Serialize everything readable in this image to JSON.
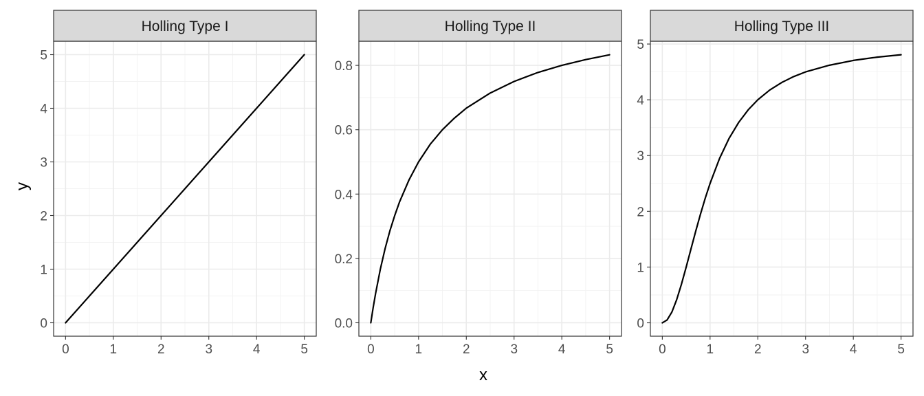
{
  "chart_data": {
    "type": "line",
    "layout": "facet",
    "xlabel": "x",
    "ylabel": "y",
    "grid": true,
    "line_color": "#000000",
    "strip_color": "#d9d9d9",
    "panels": [
      {
        "title": "Holling Type I",
        "xlim": [
          -0.25,
          5.25
        ],
        "ylim": [
          -0.25,
          5.25
        ],
        "x_ticks": [
          0,
          1,
          2,
          3,
          4,
          5
        ],
        "y_ticks": [
          0,
          1,
          2,
          3,
          4,
          5
        ],
        "y_tick_labels": [
          "0",
          "1",
          "2",
          "3",
          "4",
          "5"
        ],
        "x": [
          0,
          0.5,
          1,
          1.5,
          2,
          2.5,
          3,
          3.5,
          4,
          4.5,
          5
        ],
        "y": [
          0,
          0.5,
          1,
          1.5,
          2,
          2.5,
          3,
          3.5,
          4,
          4.5,
          5
        ]
      },
      {
        "title": "Holling Type II",
        "xlim": [
          -0.25,
          5.25
        ],
        "ylim": [
          -0.0417,
          0.875
        ],
        "x_ticks": [
          0,
          1,
          2,
          3,
          4,
          5
        ],
        "y_ticks": [
          0,
          0.2,
          0.4,
          0.6,
          0.8
        ],
        "y_tick_labels": [
          "0.0",
          "0.2",
          "0.4",
          "0.6",
          "0.8"
        ],
        "x": [
          0,
          0.05,
          0.1,
          0.2,
          0.3,
          0.4,
          0.5,
          0.6,
          0.8,
          1,
          1.25,
          1.5,
          1.75,
          2,
          2.5,
          3,
          3.5,
          4,
          4.5,
          5
        ],
        "y": [
          0,
          0.048,
          0.091,
          0.167,
          0.231,
          0.286,
          0.333,
          0.375,
          0.444,
          0.5,
          0.556,
          0.6,
          0.636,
          0.667,
          0.714,
          0.75,
          0.778,
          0.8,
          0.818,
          0.833
        ]
      },
      {
        "title": "Holling Type III",
        "xlim": [
          -0.25,
          5.25
        ],
        "ylim": [
          -0.24,
          5.05
        ],
        "x_ticks": [
          0,
          1,
          2,
          3,
          4,
          5
        ],
        "y_ticks": [
          0,
          1,
          2,
          3,
          4,
          5
        ],
        "y_tick_labels": [
          "0",
          "1",
          "2",
          "3",
          "4",
          "5"
        ],
        "x": [
          0,
          0.1,
          0.2,
          0.3,
          0.4,
          0.5,
          0.6,
          0.7,
          0.8,
          0.9,
          1,
          1.2,
          1.4,
          1.6,
          1.8,
          2,
          2.25,
          2.5,
          2.75,
          3,
          3.5,
          4,
          4.5,
          5
        ],
        "y": [
          0,
          0.05,
          0.192,
          0.413,
          0.69,
          1,
          1.324,
          1.644,
          1.951,
          2.238,
          2.5,
          2.951,
          3.311,
          3.595,
          3.821,
          4,
          4.175,
          4.31,
          4.416,
          4.5,
          4.62,
          4.706,
          4.765,
          4.808
        ]
      }
    ]
  }
}
